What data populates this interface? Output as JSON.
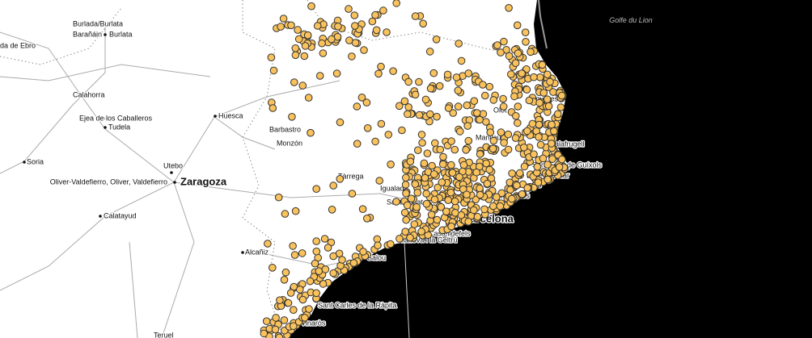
{
  "map": {
    "sea_label": "Golfe du Lion",
    "places": [
      "Burlada/Burlata",
      "Barañáin",
      "Burlata",
      "da de Ebro",
      "Calahorra",
      "Ejea de los Caballeros",
      "Tudela",
      "Huesca",
      "Barbastro",
      "Monzón",
      "Soria",
      "Utebo",
      "Oliver-Valdefierro, Oliver, Valdefierro",
      "Zaragoza",
      "Calatayud",
      "Alcañiz",
      "Barcelona",
      "Castelldefels",
      "Vilanova i la Geltrú",
      "Salou",
      "Sant Carles de la Ràpita",
      "Vinaròs",
      "Teruel",
      "Olot",
      "Manlleu",
      "Figueres",
      "Palafrugell",
      "Sant Feliu de Guíxols",
      "Lloret de Mar",
      "Blanes",
      "Igualada",
      "Tàrrega",
      "Sant Cugat",
      "Mollet del Vallès"
    ]
  }
}
